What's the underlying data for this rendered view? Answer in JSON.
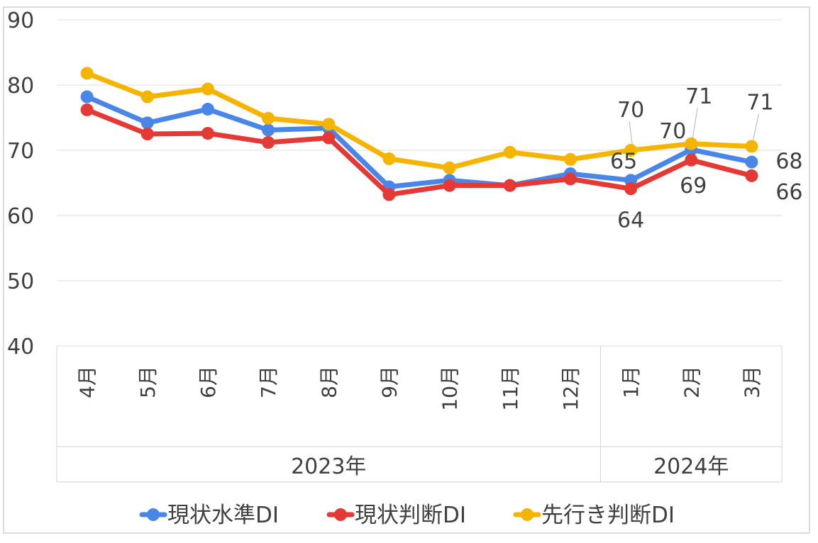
{
  "chart_data": {
    "type": "line",
    "title": "",
    "xlabel": "",
    "ylabel": "",
    "ylim": [
      40,
      90
    ],
    "yticks": [
      40,
      50,
      60,
      70,
      80,
      90
    ],
    "categories": [
      "4月",
      "5月",
      "6月",
      "7月",
      "8月",
      "9月",
      "10月",
      "11月",
      "12月",
      "1月",
      "2月",
      "3月"
    ],
    "groups": [
      {
        "label": "2023年",
        "count": 9
      },
      {
        "label": "2024年",
        "count": 3
      }
    ],
    "series": [
      {
        "name": "現状水準DI",
        "color": "#4a86e8",
        "values": [
          78.2,
          74.2,
          76.3,
          73.1,
          73.4,
          64.4,
          65.4,
          64.6,
          66.4,
          65.4,
          70.1,
          68.2
        ],
        "labels": [
          null,
          null,
          null,
          null,
          null,
          null,
          null,
          null,
          null,
          "65",
          "70",
          "68"
        ]
      },
      {
        "name": "現状判断DI",
        "color": "#e53935",
        "values": [
          76.2,
          72.5,
          72.6,
          71.2,
          71.9,
          63.2,
          64.6,
          64.6,
          65.6,
          64.1,
          68.5,
          66.1
        ],
        "labels": [
          null,
          null,
          null,
          null,
          null,
          null,
          null,
          null,
          null,
          "64",
          "69",
          "66"
        ]
      },
      {
        "name": "先行き判断DI",
        "color": "#f4b400",
        "values": [
          81.8,
          78.2,
          79.4,
          74.9,
          74.0,
          68.7,
          67.3,
          69.7,
          68.6,
          70.0,
          71.0,
          70.6
        ],
        "labels": [
          null,
          null,
          null,
          null,
          null,
          null,
          null,
          null,
          null,
          "70",
          "71",
          "71"
        ]
      }
    ],
    "grid": true,
    "legend": "bottom"
  }
}
